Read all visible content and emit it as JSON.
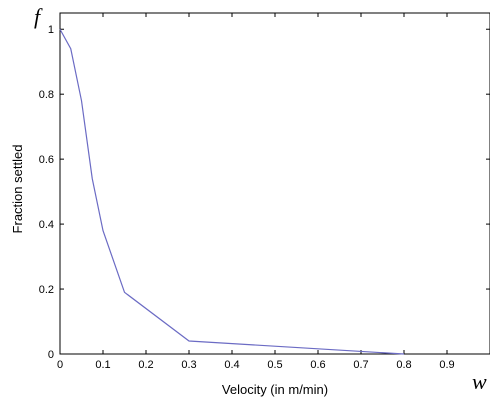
{
  "chart_data": {
    "type": "line",
    "xlabel": "Velocity (in m/min)",
    "ylabel": "Fraction settled",
    "x_var": "w",
    "y_var": "f",
    "xlim": [
      0,
      1
    ],
    "ylim": [
      0,
      1.05
    ],
    "x_ticks": [
      0,
      0.1,
      0.2,
      0.3,
      0.4,
      0.5,
      0.6,
      0.7,
      0.8,
      0.9
    ],
    "x_tick_labels": [
      "0",
      "0.1",
      "0.2",
      "0.3",
      "0.4",
      "0.5",
      "0.6",
      "0.7",
      "0.8",
      "0.9"
    ],
    "y_ticks": [
      0,
      0.2,
      0.4,
      0.6,
      0.8,
      1
    ],
    "y_tick_labels": [
      "0",
      "0.2",
      "0.4",
      "0.6",
      "0.8",
      "1"
    ],
    "grid": false,
    "line_color": "#6b6bc4",
    "series": [
      {
        "x": [
          0,
          0.025,
          0.05,
          0.075,
          0.1,
          0.15,
          0.3,
          0.8
        ],
        "y": [
          1.0,
          0.94,
          0.78,
          0.54,
          0.38,
          0.19,
          0.04,
          0.0
        ]
      }
    ]
  }
}
